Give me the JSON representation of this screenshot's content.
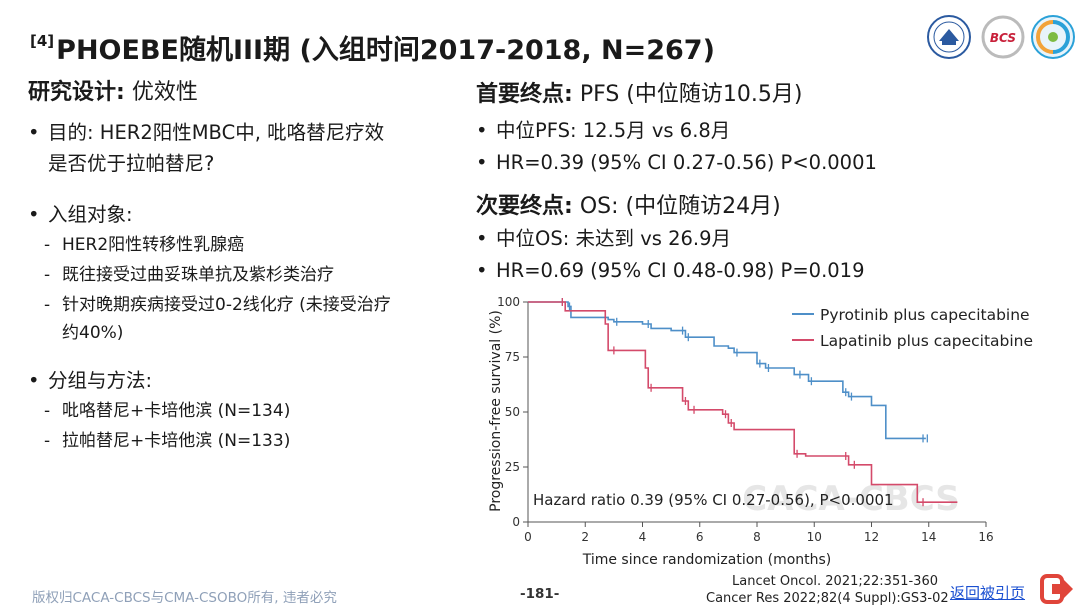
{
  "title": {
    "ref": "[4]",
    "text": "PHOEBE随机III期 (入组时间2017-2018, N=267)"
  },
  "logos": [
    "university-seal-logo",
    "bcs-logo",
    "society-swirl-logo"
  ],
  "logo_text": {
    "bcs": "BCS"
  },
  "left": {
    "design_label": "研究设计:",
    "design_value": "优效性",
    "aim_label": "目的:",
    "aim_line1": "HER2阳性MBC中, 吡咯替尼疗效",
    "aim_line2": "是否优于拉帕替尼?",
    "enroll_label": "入组对象:",
    "enroll_items": [
      "HER2阳性转移性乳腺癌",
      "既往接受过曲妥珠单抗及紫杉类治疗",
      "针对晚期疾病接受过0-2线化疗 (未接受治疗"
    ],
    "enroll_cont": "约40%)",
    "groups_label": "分组与方法:",
    "groups_items": [
      "吡咯替尼+卡培他滨 (N=134)",
      "拉帕替尼+卡培他滨 (N=133)"
    ]
  },
  "right": {
    "primary_label": "首要终点:",
    "primary_value": "PFS (中位随访10.5月)",
    "primary_items": [
      "中位PFS: 12.5月 vs 6.8月",
      "HR=0.39 (95% CI 0.27-0.56) P<0.0001"
    ],
    "secondary_label": "次要终点:",
    "secondary_value": "OS: (中位随访24月)",
    "secondary_items": [
      "中位OS: 未达到 vs 26.9月",
      "HR=0.69 (95% CI 0.48-0.98) P=0.019"
    ]
  },
  "chart_data": {
    "type": "line",
    "title": "",
    "xlabel": "Time since randomization (months)",
    "ylabel": "Progression-free survival (%)",
    "xlim": [
      0,
      16
    ],
    "ylim": [
      0,
      100
    ],
    "xticks": [
      0,
      2,
      4,
      6,
      8,
      10,
      12,
      14,
      16
    ],
    "yticks": [
      0,
      25,
      50,
      75,
      100
    ],
    "legend_position": "top-right",
    "annotation": "Hazard ratio 0.39 (95% CI 0.27-0.56), P<0.0001",
    "watermark": "CACA-CBCS",
    "series": [
      {
        "name": "Pyrotinib plus capecitabine",
        "color": "#4e8fc8",
        "x": [
          0,
          1.0,
          1.4,
          1.5,
          2.8,
          3.0,
          4.0,
          4.3,
          5.0,
          5.5,
          6.5,
          7.0,
          7.2,
          8.0,
          8.3,
          9.3,
          9.8,
          11.0,
          11.2,
          12.0,
          12.5,
          13.9
        ],
        "y": [
          100,
          100,
          98,
          93,
          92,
          91,
          90,
          88,
          87,
          84,
          80,
          79,
          77,
          72,
          70,
          67,
          64,
          59,
          57,
          53,
          38,
          38
        ]
      },
      {
        "name": "Lapatinib plus capecitabine",
        "color": "#d44a6a",
        "x": [
          0,
          1.0,
          1.3,
          2.7,
          2.8,
          4.1,
          4.2,
          5.4,
          5.6,
          6.8,
          7.0,
          7.2,
          8.2,
          9.3,
          9.7,
          11.2,
          12.0,
          13.6,
          15.0
        ],
        "y": [
          100,
          100,
          96,
          90,
          78,
          70,
          61,
          55,
          51,
          49,
          45,
          42,
          42,
          31,
          30,
          26,
          17,
          9,
          9
        ]
      }
    ],
    "censor_marks": [
      {
        "series": 0,
        "x": [
          1.2,
          1.45,
          3.1,
          4.2,
          5.4,
          5.6,
          7.3,
          8.1,
          8.4,
          9.5,
          9.9,
          11.1,
          11.3,
          13.8,
          13.95
        ]
      },
      {
        "series": 1,
        "x": [
          1.2,
          3.0,
          4.3,
          5.5,
          5.8,
          6.9,
          7.1,
          9.4,
          11.1,
          11.4,
          13.8
        ]
      }
    ]
  },
  "footer": {
    "copyright": "版权归CACA-CBCS与CMA-CSOBO所有, 违者必究",
    "page": "-181-",
    "ref1": "Lancet Oncol. 2021;22:351-360",
    "ref2": "Cancer Res 2022;82(4 Suppl):GS3-02",
    "back_link": "返回被引页"
  }
}
